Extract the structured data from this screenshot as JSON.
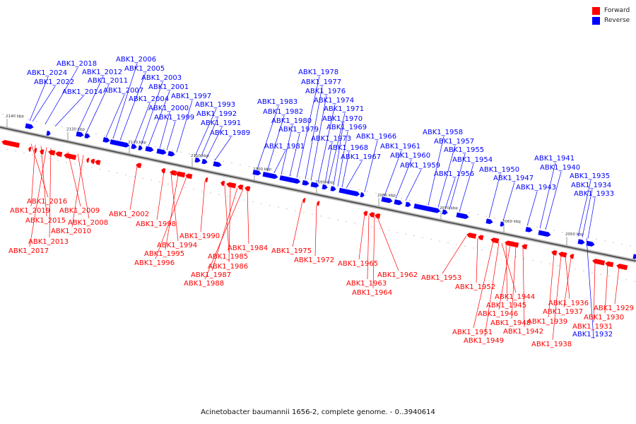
{
  "legend": [
    {
      "label": "Forward",
      "color": "#ff0000"
    },
    {
      "label": "Reverse",
      "color": "#0000ff"
    }
  ],
  "caption": "Acinetobacter baumannii 1656-2, complete genome. - 0..3940614",
  "ticks": [
    "2140 kbp",
    "2130 kbp",
    "2120 kbp",
    "2110 kbp",
    "2100 kbp",
    "2090 kbp",
    "2080 kbp",
    "2070 kbp",
    "2060 kbp",
    "2050 kbp"
  ],
  "reverse_genes": [
    "ABK1_2024",
    "ABK1_2022",
    "ABK1_2018",
    "ABK1_2014",
    "ABK1_2012",
    "ABK1_2011",
    "ABK1_2007",
    "ABK1_2006",
    "ABK1_2005",
    "ABK1_2004",
    "ABK1_2003",
    "ABK1_2001",
    "ABK1_2000",
    "ABK1_1999",
    "ABK1_1997",
    "ABK1_1993",
    "ABK1_1992",
    "ABK1_1991",
    "ABK1_1989",
    "ABK1_1983",
    "ABK1_1982",
    "ABK1_1981",
    "ABK1_1980",
    "ABK1_1979",
    "ABK1_1978",
    "ABK1_1977",
    "ABK1_1976",
    "ABK1_1974",
    "ABK1_1973",
    "ABK1_1971",
    "ABK1_1970",
    "ABK1_1969",
    "ABK1_1968",
    "ABK1_1967",
    "ABK1_1966",
    "ABK1_1961",
    "ABK1_1960",
    "ABK1_1959",
    "ABK1_1958",
    "ABK1_1957",
    "ABK1_1956",
    "ABK1_1955",
    "ABK1_1954",
    "ABK1_1950",
    "ABK1_1947",
    "ABK1_1943",
    "ABK1_1941",
    "ABK1_1940",
    "ABK1_1935",
    "ABK1_1934",
    "ABK1_1933",
    "ABK1_1932"
  ],
  "forward_genes": [
    "ABK1_2016",
    "ABK1_2019",
    "ABK1_2015",
    "ABK1_2017",
    "ABK1_2013",
    "ABK1_2009",
    "ABK1_2008",
    "ABK1_2010",
    "ABK1_2002",
    "ABK1_1998",
    "ABK1_1994",
    "ABK1_1995",
    "ABK1_1996",
    "ABK1_1990",
    "ABK1_1985",
    "ABK1_1986",
    "ABK1_1987",
    "ABK1_1988",
    "ABK1_1984",
    "ABK1_1975",
    "ABK1_1972",
    "ABK1_1965",
    "ABK1_1963",
    "ABK1_1964",
    "ABK1_1962",
    "ABK1_1953",
    "ABK1_1952",
    "ABK1_1944",
    "ABK1_1945",
    "ABK1_1946",
    "ABK1_1948",
    "ABK1_1951",
    "ABK1_1949",
    "ABK1_1942",
    "ABK1_1939",
    "ABK1_1938",
    "ABK1_1936",
    "ABK1_1937",
    "ABK1_1931",
    "ABK1_1930",
    "ABK1_1929"
  ]
}
